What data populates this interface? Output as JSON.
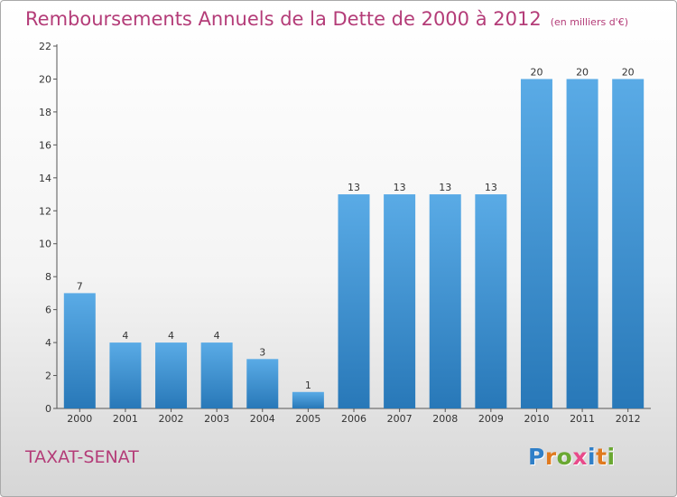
{
  "chart_data": {
    "type": "bar",
    "title": "Remboursements Annuels de la Dette de 2000 à 2012",
    "unit": "(en milliers d'€)",
    "categories": [
      "2000",
      "2001",
      "2002",
      "2003",
      "2004",
      "2005",
      "2006",
      "2007",
      "2008",
      "2009",
      "2010",
      "2011",
      "2012"
    ],
    "values": [
      7,
      4,
      4,
      4,
      3,
      1,
      13,
      13,
      13,
      13,
      20,
      20,
      20
    ],
    "ylim": [
      0,
      22
    ],
    "yticks": [
      0,
      2,
      4,
      6,
      8,
      10,
      12,
      14,
      16,
      18,
      20,
      22
    ],
    "xlabel": "",
    "ylabel": "",
    "grid": false,
    "colors": {
      "bar_top": "#5aabe6",
      "bar_bottom": "#2878b8",
      "axis": "#555555"
    }
  },
  "commune": "TAXAT-SENAT",
  "logo": {
    "text": "Proxiti",
    "letters": [
      {
        "ch": "P",
        "color": "#2f7fc8"
      },
      {
        "ch": "r",
        "color": "#e07a1f"
      },
      {
        "ch": "o",
        "color": "#6aa832"
      },
      {
        "ch": "x",
        "color": "#e84a8a"
      },
      {
        "ch": "i",
        "color": "#2f7fc8"
      },
      {
        "ch": "t",
        "color": "#e07a1f"
      },
      {
        "ch": "i",
        "color": "#6aa832"
      }
    ]
  }
}
